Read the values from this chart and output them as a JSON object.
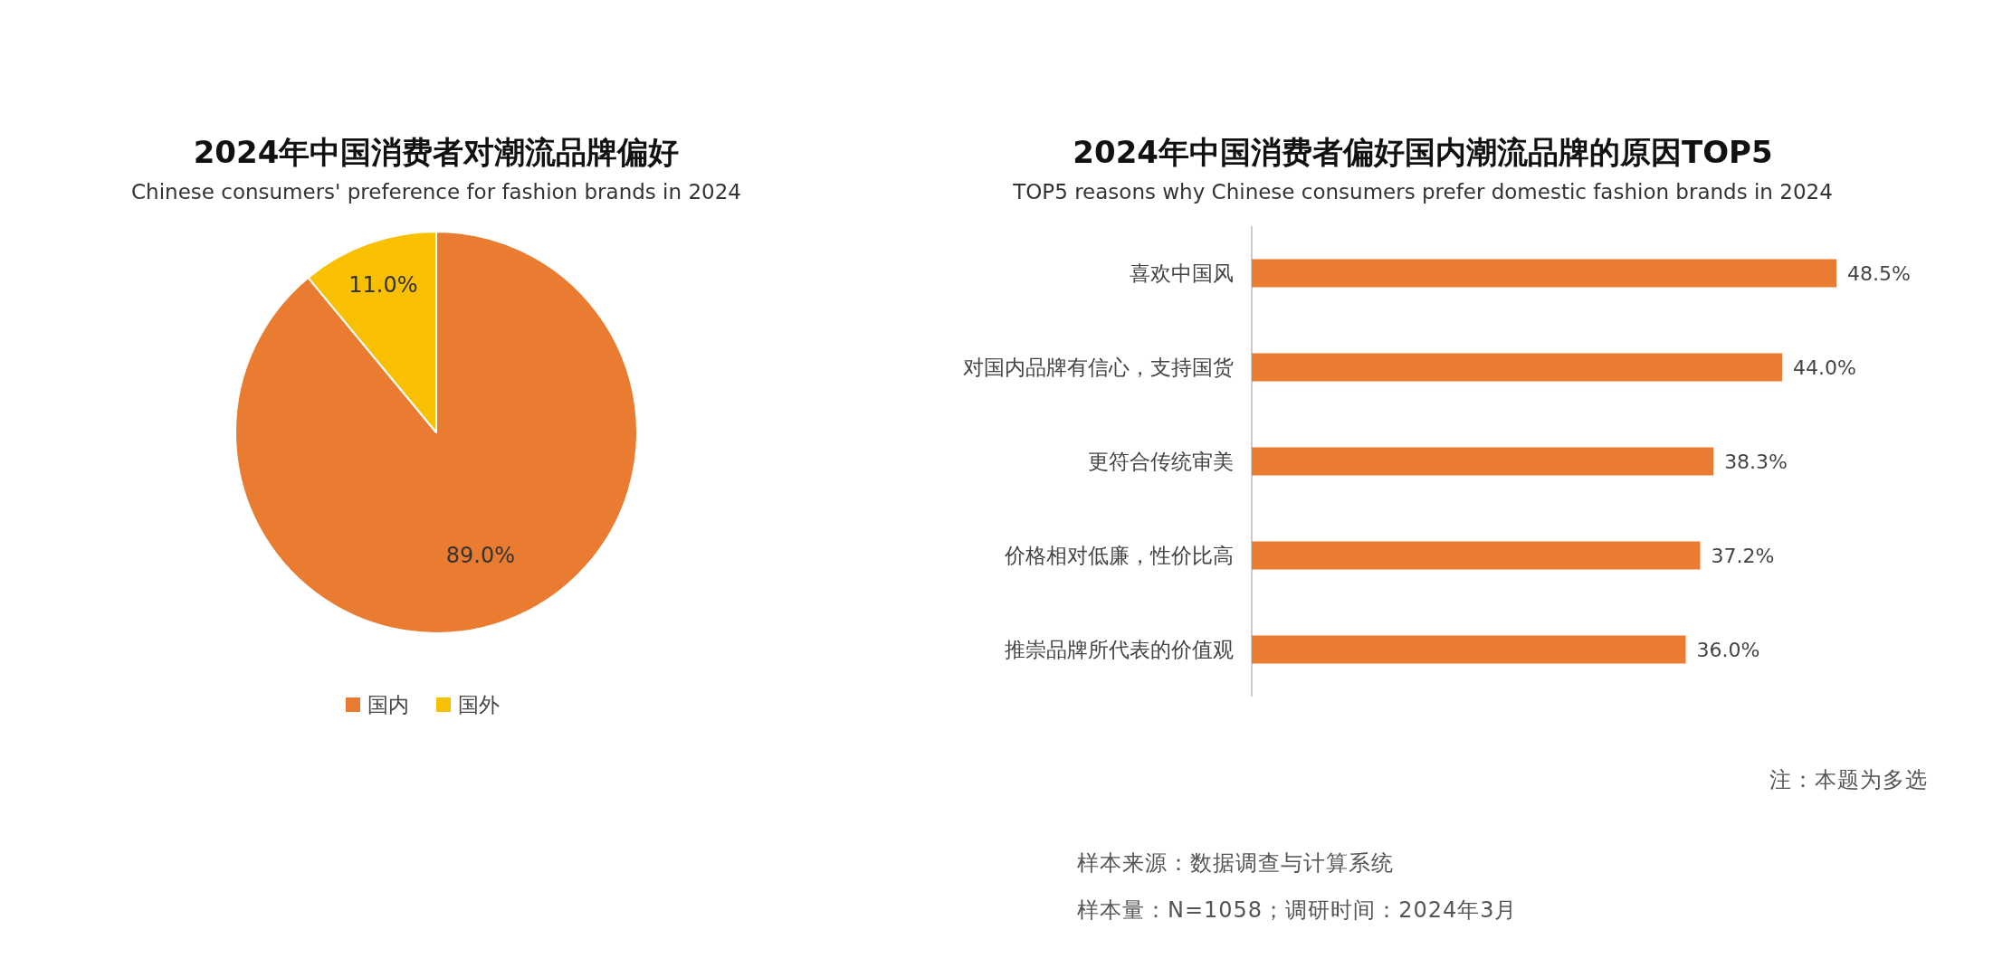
{
  "chart_data": [
    {
      "type": "pie",
      "title": "2024年中国消费者对潮流品牌偏好",
      "subtitle": "Chinese consumers' preference for fashion brands in 2024",
      "categories": [
        "国内",
        "国外"
      ],
      "values": [
        89.0,
        11.0
      ],
      "colors": [
        "#e97c30",
        "#f8c000"
      ],
      "value_labels": [
        "89.0%",
        "11.0%"
      ],
      "legend": "bottom"
    },
    {
      "type": "bar",
      "orientation": "horizontal",
      "title": "2024年中国消费者偏好国内潮流品牌的原因TOP5",
      "subtitle": "TOP5 reasons why Chinese consumers prefer domestic fashion brands in 2024",
      "categories": [
        "喜欢中国风",
        "对国内品牌有信心，支持国货",
        "更符合传统审美",
        "价格相对低廉，性价比高",
        "推崇品牌所代表的价值观"
      ],
      "values": [
        48.5,
        44.0,
        38.3,
        37.2,
        36.0
      ],
      "color": "#e97c30",
      "value_labels": [
        "48.5%",
        "44.0%",
        "38.3%",
        "37.2%",
        "36.0%"
      ],
      "annotations": [
        "注：本题为多选",
        "样本来源：数据调查与计算系统",
        "样本量：N=1058；调研时间：2024年3月"
      ]
    }
  ]
}
